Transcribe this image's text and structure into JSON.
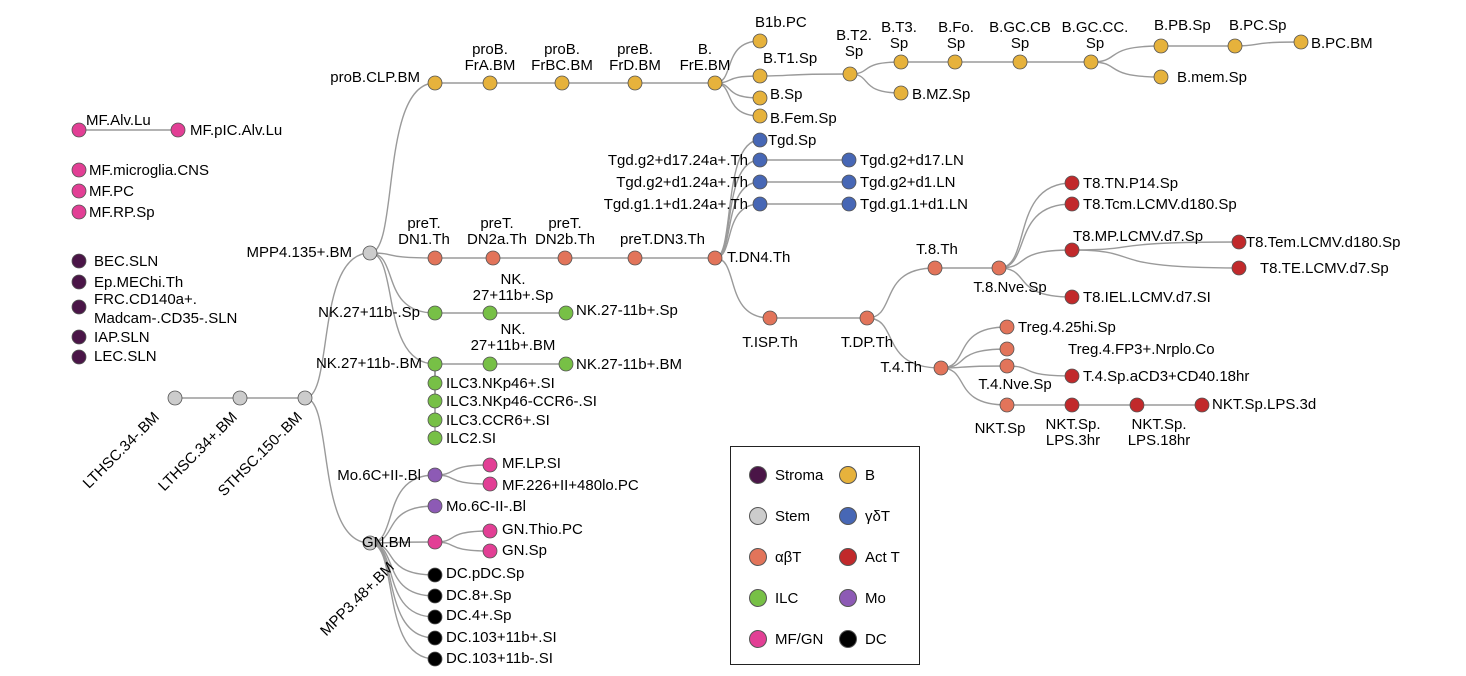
{
  "colors": {
    "Stroma": "#4a1547",
    "Stem": "#cccccc",
    "B": "#e6b23c",
    "gdT": "#4767b5",
    "abT": "#e2745a",
    "ActT": "#c1292b",
    "ILC": "#77c046",
    "Mo": "#8d5ab5",
    "MFGN": "#e23f95",
    "DC": "#000000"
  },
  "legend": [
    {
      "key": "Stroma",
      "label": "Stroma"
    },
    {
      "key": "B",
      "label": "B"
    },
    {
      "key": "Stem",
      "label": "Stem"
    },
    {
      "key": "gdT",
      "label": "γδT"
    },
    {
      "key": "abT",
      "label": "αβT"
    },
    {
      "key": "ActT",
      "label": "Act T"
    },
    {
      "key": "ILC",
      "label": "ILC"
    },
    {
      "key": "Mo",
      "label": "Mo"
    },
    {
      "key": "MFGN",
      "label": "MF/GN"
    },
    {
      "key": "DC",
      "label": "DC"
    }
  ],
  "nodes": [
    {
      "id": "LTHSC34m",
      "label": "LTHSC.34-.BM",
      "cls": "Stem"
    },
    {
      "id": "LTHSC34p",
      "label": "LTHSC.34+.BM",
      "cls": "Stem"
    },
    {
      "id": "STHSC150m",
      "label": "STHSC.150-.BM",
      "cls": "Stem"
    },
    {
      "id": "MPP4",
      "label": "MPP4.135+.BM",
      "cls": "Stem"
    },
    {
      "id": "MPP3",
      "label": "MPP3.48+.BM",
      "cls": "Stem"
    },
    {
      "id": "proBCLP",
      "label": "proB.CLP.BM",
      "cls": "B"
    },
    {
      "id": "proBFrA",
      "label": "proB. FrA.BM",
      "cls": "B"
    },
    {
      "id": "proBFrBC",
      "label": "proB. FrBC.BM",
      "cls": "B"
    },
    {
      "id": "preBFrD",
      "label": "preB. FrD.BM",
      "cls": "B"
    },
    {
      "id": "BFrE",
      "label": "B. FrE.BM",
      "cls": "B"
    },
    {
      "id": "B1bPC",
      "label": "B1b.PC",
      "cls": "B"
    },
    {
      "id": "BT1Sp",
      "label": "B.T1.Sp",
      "cls": "B"
    },
    {
      "id": "BSp",
      "label": "B.Sp",
      "cls": "B"
    },
    {
      "id": "BFemSp",
      "label": "B.Fem.Sp",
      "cls": "B"
    },
    {
      "id": "BT2Sp",
      "label": "B.T2. Sp",
      "cls": "B"
    },
    {
      "id": "BT3Sp",
      "label": "B.T3. Sp",
      "cls": "B"
    },
    {
      "id": "BMZSp",
      "label": "B.MZ.Sp",
      "cls": "B"
    },
    {
      "id": "BFoSp",
      "label": "B.Fo. Sp",
      "cls": "B"
    },
    {
      "id": "BGCCB",
      "label": "B.GC.CB Sp",
      "cls": "B"
    },
    {
      "id": "BGCCC",
      "label": "B.GC.CC. Sp",
      "cls": "B"
    },
    {
      "id": "BPBSp",
      "label": "B.PB.Sp",
      "cls": "B"
    },
    {
      "id": "BPCSp",
      "label": "B.PC.Sp",
      "cls": "B"
    },
    {
      "id": "BPCBM",
      "label": "B.PC.BM",
      "cls": "B"
    },
    {
      "id": "BmemSp",
      "label": "B.mem.Sp",
      "cls": "B"
    },
    {
      "id": "MFAlvLu",
      "label": "MF.Alv.Lu",
      "cls": "MFGN"
    },
    {
      "id": "MFpICAlvLu",
      "label": "MF.pIC.Alv.Lu",
      "cls": "MFGN"
    },
    {
      "id": "MFmicroglia",
      "label": "MF.microglia.CNS",
      "cls": "MFGN"
    },
    {
      "id": "MFPC",
      "label": "MF.PC",
      "cls": "MFGN"
    },
    {
      "id": "MFRPSp",
      "label": "MF.RP.Sp",
      "cls": "MFGN"
    },
    {
      "id": "BECSLN",
      "label": "BEC.SLN",
      "cls": "Stroma"
    },
    {
      "id": "EpMEChi",
      "label": "Ep.MEChi.Th",
      "cls": "Stroma"
    },
    {
      "id": "FRC",
      "label": "FRC.CD140a+. Madcam-.CD35-.SLN",
      "cls": "Stroma"
    },
    {
      "id": "IAPSLN",
      "label": "IAP.SLN",
      "cls": "Stroma"
    },
    {
      "id": "LECSLN",
      "label": "LEC.SLN",
      "cls": "Stroma"
    },
    {
      "id": "preTDN1",
      "label": "preT. DN1.Th",
      "cls": "abT"
    },
    {
      "id": "preTDN2a",
      "label": "preT. DN2a.Th",
      "cls": "abT"
    },
    {
      "id": "preTDN2b",
      "label": "preT. DN2b.Th",
      "cls": "abT"
    },
    {
      "id": "preTDN3",
      "label": "preT.DN3.Th",
      "cls": "abT"
    },
    {
      "id": "TDN4",
      "label": "T.DN4.Th",
      "cls": "abT"
    },
    {
      "id": "TgdSp",
      "label": "Tgd.Sp",
      "cls": "gdT"
    },
    {
      "id": "Tgd1724a",
      "label": "Tgd.g2+d17.24a+.Th",
      "cls": "gdT"
    },
    {
      "id": "Tgd124a",
      "label": "Tgd.g2+d1.24a+.Th",
      "cls": "gdT"
    },
    {
      "id": "Tgdg11",
      "label": "Tgd.g1.1+d1.24a+.Th",
      "cls": "gdT"
    },
    {
      "id": "Tgd17LN",
      "label": "Tgd.g2+d17.LN",
      "cls": "gdT"
    },
    {
      "id": "Tgd1LN",
      "label": "Tgd.g2+d1.LN",
      "cls": "gdT"
    },
    {
      "id": "Tgdg11LN",
      "label": "Tgd.g1.1+d1.LN",
      "cls": "gdT"
    },
    {
      "id": "TISP",
      "label": "T.ISP.Th",
      "cls": "abT"
    },
    {
      "id": "TDP",
      "label": "T.DP.Th",
      "cls": "abT"
    },
    {
      "id": "T8Th",
      "label": "T.8.Th",
      "cls": "abT"
    },
    {
      "id": "T8Nve",
      "label": "T.8.Nve.Sp",
      "cls": "abT"
    },
    {
      "id": "T8TNP14",
      "label": "T8.TN.P14.Sp",
      "cls": "ActT"
    },
    {
      "id": "T8Tcm",
      "label": "T8.Tcm.LCMV.d180.Sp",
      "cls": "ActT"
    },
    {
      "id": "T8MP",
      "label": "T8.MP.LCMV.d7.Sp",
      "cls": "ActT"
    },
    {
      "id": "T8Tem",
      "label": "T8.Tem.LCMV.d180.Sp",
      "cls": "ActT"
    },
    {
      "id": "T8TE",
      "label": "T8.TE.LCMV.d7.Sp",
      "cls": "ActT"
    },
    {
      "id": "T8IEL",
      "label": "T8.IEL.LCMV.d7.SI",
      "cls": "ActT"
    },
    {
      "id": "T4Th",
      "label": "T.4.Th",
      "cls": "abT"
    },
    {
      "id": "Treg425",
      "label": "Treg.4.25hi.Sp",
      "cls": "abT"
    },
    {
      "id": "TregFP3",
      "label": "Treg.4.FP3+.Nrplo.Co",
      "cls": "abT"
    },
    {
      "id": "T4Nve",
      "label": "T.4.Nve.Sp",
      "cls": "abT"
    },
    {
      "id": "T4aCD3",
      "label": "T.4.Sp.aCD3+CD40.18hr",
      "cls": "ActT"
    },
    {
      "id": "NKTSp",
      "label": "NKT.Sp",
      "cls": "abT"
    },
    {
      "id": "NKTLPS3hr",
      "label": "NKT.Sp. LPS.3hr",
      "cls": "ActT"
    },
    {
      "id": "NKTLPS18hr",
      "label": "NKT.Sp. LPS.18hr",
      "cls": "ActT"
    },
    {
      "id": "NKTLPS3d",
      "label": "NKT.Sp.LPS.3d",
      "cls": "ActT"
    },
    {
      "id": "NK27Sp",
      "label": "NK.27+11b-.Sp",
      "cls": "ILC"
    },
    {
      "id": "NK2711bpSp",
      "label": "NK. 27+11b+.Sp",
      "cls": "ILC"
    },
    {
      "id": "NK2711bmSp",
      "label": "NK.27-11b+.Sp",
      "cls": "ILC"
    },
    {
      "id": "NK27BM",
      "label": "NK.27+11b-.BM",
      "cls": "ILC"
    },
    {
      "id": "NK2711bpBM",
      "label": "NK. 27+11b+.BM",
      "cls": "ILC"
    },
    {
      "id": "NK2711bmBM",
      "label": "NK.27-11b+.BM",
      "cls": "ILC"
    },
    {
      "id": "ILC3NKp46p",
      "label": "ILC3.NKp46+.SI",
      "cls": "ILC"
    },
    {
      "id": "ILC3NKp46m",
      "label": "ILC3.NKp46-CCR6-.SI",
      "cls": "ILC"
    },
    {
      "id": "ILC3CCR6",
      "label": "ILC3.CCR6+.SI",
      "cls": "ILC"
    },
    {
      "id": "ILC2SI",
      "label": "ILC2.SI",
      "cls": "ILC"
    },
    {
      "id": "Mo6Cp",
      "label": "Mo.6C+II-.Bl",
      "cls": "Mo"
    },
    {
      "id": "MFLPSI",
      "label": "MF.LP.SI",
      "cls": "MFGN"
    },
    {
      "id": "MF226",
      "label": "MF.226+II+480lo.PC",
      "cls": "MFGN"
    },
    {
      "id": "Mo6Cm",
      "label": "Mo.6C-II-.Bl",
      "cls": "Mo"
    },
    {
      "id": "GNBM",
      "label": "GN.BM",
      "cls": "MFGN"
    },
    {
      "id": "GNThio",
      "label": "GN.Thio.PC",
      "cls": "MFGN"
    },
    {
      "id": "GNSp",
      "label": "GN.Sp",
      "cls": "MFGN"
    },
    {
      "id": "DCpDC",
      "label": "DC.pDC.Sp",
      "cls": "DC"
    },
    {
      "id": "DC8",
      "label": "DC.8+.Sp",
      "cls": "DC"
    },
    {
      "id": "DC4",
      "label": "DC.4+.Sp",
      "cls": "DC"
    },
    {
      "id": "DC103p",
      "label": "DC.103+11b+.SI",
      "cls": "DC"
    },
    {
      "id": "DC103m",
      "label": "DC.103+11b-.SI",
      "cls": "DC"
    }
  ],
  "edges": [
    [
      "LTHSC34m",
      "LTHSC34p"
    ],
    [
      "LTHSC34p",
      "STHSC150m"
    ],
    [
      "STHSC150m",
      "MPP4"
    ],
    [
      "STHSC150m",
      "MPP3"
    ],
    [
      "MPP4",
      "proBCLP"
    ],
    [
      "MPP4",
      "preTDN1"
    ],
    [
      "MPP4",
      "NK27Sp"
    ],
    [
      "MPP4",
      "NK27BM"
    ],
    [
      "proBCLP",
      "proBFrA"
    ],
    [
      "proBFrA",
      "proBFrBC"
    ],
    [
      "proBFrBC",
      "preBFrD"
    ],
    [
      "preBFrD",
      "BFrE"
    ],
    [
      "BFrE",
      "B1bPC"
    ],
    [
      "BFrE",
      "BT1Sp"
    ],
    [
      "BFrE",
      "BSp"
    ],
    [
      "BFrE",
      "BFemSp"
    ],
    [
      "BT1Sp",
      "BT2Sp"
    ],
    [
      "BT2Sp",
      "BT3Sp"
    ],
    [
      "BT2Sp",
      "BMZSp"
    ],
    [
      "BT3Sp",
      "BFoSp"
    ],
    [
      "BFoSp",
      "BGCCB"
    ],
    [
      "BGCCB",
      "BGCCC"
    ],
    [
      "BGCCC",
      "BPBSp"
    ],
    [
      "BGCCC",
      "BmemSp"
    ],
    [
      "BPBSp",
      "BPCSp"
    ],
    [
      "BPCSp",
      "BPCBM"
    ],
    [
      "MFAlvLu",
      "MFpICAlvLu"
    ],
    [
      "preTDN1",
      "preTDN2a"
    ],
    [
      "preTDN2a",
      "preTDN2b"
    ],
    [
      "preTDN2b",
      "preTDN3"
    ],
    [
      "preTDN3",
      "TDN4"
    ],
    [
      "TDN4",
      "TgdSp"
    ],
    [
      "TDN4",
      "Tgd1724a"
    ],
    [
      "TDN4",
      "Tgd124a"
    ],
    [
      "TDN4",
      "Tgdg11"
    ],
    [
      "TDN4",
      "TISP"
    ],
    [
      "Tgd1724a",
      "Tgd17LN"
    ],
    [
      "Tgd124a",
      "Tgd1LN"
    ],
    [
      "Tgdg11",
      "Tgdg11LN"
    ],
    [
      "TISP",
      "TDP"
    ],
    [
      "TDP",
      "T8Th"
    ],
    [
      "TDP",
      "T4Th"
    ],
    [
      "T8Th",
      "T8Nve"
    ],
    [
      "T8Nve",
      "T8TNP14"
    ],
    [
      "T8Nve",
      "T8Tcm"
    ],
    [
      "T8Nve",
      "T8MP"
    ],
    [
      "T8Nve",
      "T8IEL"
    ],
    [
      "T8MP",
      "T8Tem"
    ],
    [
      "T8MP",
      "T8TE"
    ],
    [
      "T4Th",
      "Treg425"
    ],
    [
      "T4Th",
      "TregFP3"
    ],
    [
      "T4Th",
      "T4Nve"
    ],
    [
      "T4Th",
      "NKTSp"
    ],
    [
      "T4Nve",
      "T4aCD3"
    ],
    [
      "NKTSp",
      "NKTLPS3hr"
    ],
    [
      "NKTLPS3hr",
      "NKTLPS18hr"
    ],
    [
      "NKTLPS18hr",
      "NKTLPS3d"
    ],
    [
      "NK27Sp",
      "NK2711bpSp"
    ],
    [
      "NK2711bpSp",
      "NK2711bmSp"
    ],
    [
      "NK27BM",
      "NK2711bpBM"
    ],
    [
      "NK2711bpBM",
      "NK2711bmBM"
    ],
    [
      "NK27BM",
      "ILC3NKp46p"
    ],
    [
      "NK27BM",
      "ILC3NKp46m"
    ],
    [
      "NK27BM",
      "ILC3CCR6"
    ],
    [
      "NK27BM",
      "ILC2SI"
    ],
    [
      "MPP3",
      "Mo6Cp"
    ],
    [
      "MPP3",
      "Mo6Cm"
    ],
    [
      "MPP3",
      "GNBM"
    ],
    [
      "MPP3",
      "DCpDC"
    ],
    [
      "MPP3",
      "DC8"
    ],
    [
      "MPP3",
      "DC4"
    ],
    [
      "MPP3",
      "DC103p"
    ],
    [
      "MPP3",
      "DC103m"
    ],
    [
      "Mo6Cp",
      "MFLPSI"
    ],
    [
      "Mo6Cp",
      "MF226"
    ],
    [
      "GNBM",
      "GNThio"
    ],
    [
      "GNBM",
      "GNSp"
    ]
  ]
}
